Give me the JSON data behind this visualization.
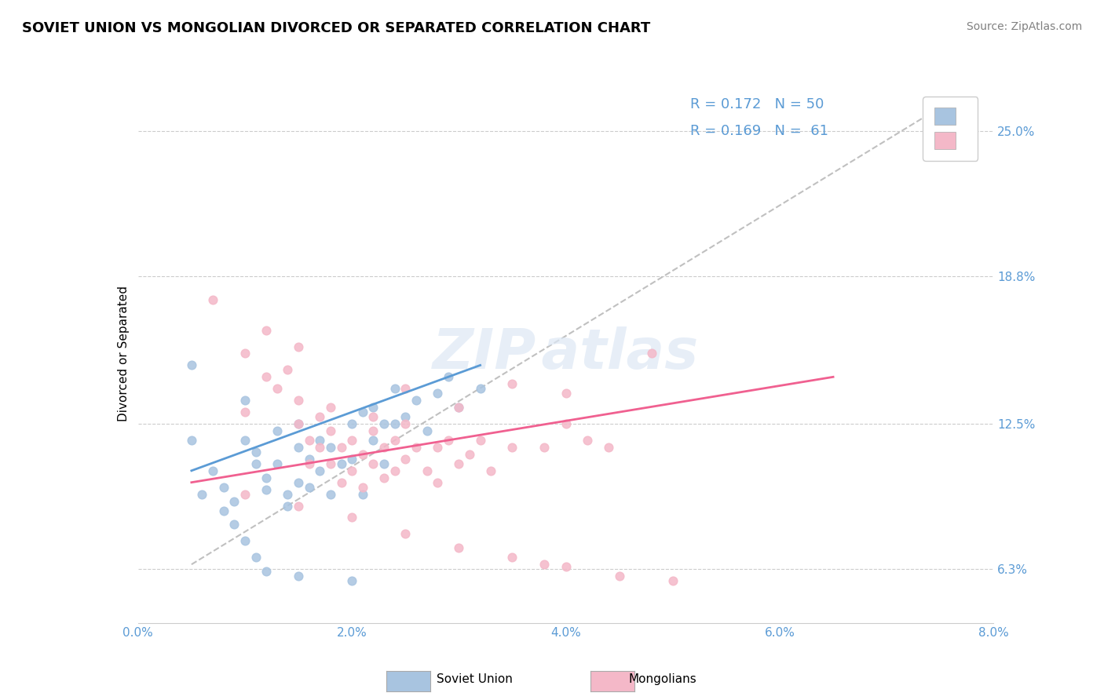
{
  "title": "SOVIET UNION VS MONGOLIAN DIVORCED OR SEPARATED CORRELATION CHART",
  "source_text": "Source: ZipAtlas.com",
  "ylabel": "Divorced or Separated",
  "xlabel_ticks": [
    "0.0%",
    "2.0%",
    "4.0%",
    "6.0%",
    "8.0%"
  ],
  "xlabel_vals": [
    0.0,
    0.02,
    0.04,
    0.06,
    0.08
  ],
  "ylabel_ticks": [
    "6.3%",
    "12.5%",
    "18.8%",
    "25.0%"
  ],
  "ylabel_vals": [
    0.063,
    0.125,
    0.188,
    0.25
  ],
  "xlim": [
    0.0,
    0.08
  ],
  "ylim": [
    0.04,
    0.27
  ],
  "legend_r1": "R = 0.172",
  "legend_n1": "N = 50",
  "legend_r2": "R = 0.169",
  "legend_n2": "N =  61",
  "watermark": "ZIPAtlas",
  "soviet_color": "#a8c4e0",
  "mongolian_color": "#f4b8c8",
  "soviet_line_color": "#5b9bd5",
  "mongolian_line_color": "#f06090",
  "diagonal_color": "#c0c0c0",
  "soviet_scatter": [
    [
      0.005,
      0.118
    ],
    [
      0.007,
      0.105
    ],
    [
      0.008,
      0.098
    ],
    [
      0.009,
      0.092
    ],
    [
      0.01,
      0.135
    ],
    [
      0.01,
      0.118
    ],
    [
      0.011,
      0.113
    ],
    [
      0.011,
      0.108
    ],
    [
      0.012,
      0.102
    ],
    [
      0.012,
      0.097
    ],
    [
      0.013,
      0.122
    ],
    [
      0.013,
      0.108
    ],
    [
      0.014,
      0.095
    ],
    [
      0.014,
      0.09
    ],
    [
      0.015,
      0.125
    ],
    [
      0.015,
      0.115
    ],
    [
      0.015,
      0.1
    ],
    [
      0.016,
      0.11
    ],
    [
      0.016,
      0.098
    ],
    [
      0.017,
      0.118
    ],
    [
      0.017,
      0.105
    ],
    [
      0.018,
      0.115
    ],
    [
      0.018,
      0.095
    ],
    [
      0.019,
      0.108
    ],
    [
      0.02,
      0.125
    ],
    [
      0.02,
      0.11
    ],
    [
      0.021,
      0.13
    ],
    [
      0.021,
      0.095
    ],
    [
      0.022,
      0.132
    ],
    [
      0.022,
      0.118
    ],
    [
      0.023,
      0.125
    ],
    [
      0.023,
      0.108
    ],
    [
      0.024,
      0.14
    ],
    [
      0.025,
      0.128
    ],
    [
      0.026,
      0.135
    ],
    [
      0.027,
      0.122
    ],
    [
      0.028,
      0.138
    ],
    [
      0.029,
      0.145
    ],
    [
      0.03,
      0.132
    ],
    [
      0.032,
      0.14
    ],
    [
      0.005,
      0.15
    ],
    [
      0.006,
      0.095
    ],
    [
      0.008,
      0.088
    ],
    [
      0.009,
      0.082
    ],
    [
      0.01,
      0.075
    ],
    [
      0.011,
      0.068
    ],
    [
      0.012,
      0.062
    ],
    [
      0.015,
      0.06
    ],
    [
      0.02,
      0.058
    ],
    [
      0.024,
      0.125
    ]
  ],
  "mongolian_scatter": [
    [
      0.007,
      0.178
    ],
    [
      0.01,
      0.155
    ],
    [
      0.012,
      0.165
    ],
    [
      0.013,
      0.14
    ],
    [
      0.014,
      0.148
    ],
    [
      0.015,
      0.135
    ],
    [
      0.015,
      0.125
    ],
    [
      0.016,
      0.118
    ],
    [
      0.016,
      0.108
    ],
    [
      0.017,
      0.128
    ],
    [
      0.017,
      0.115
    ],
    [
      0.018,
      0.122
    ],
    [
      0.018,
      0.108
    ],
    [
      0.019,
      0.115
    ],
    [
      0.019,
      0.1
    ],
    [
      0.02,
      0.118
    ],
    [
      0.02,
      0.105
    ],
    [
      0.021,
      0.112
    ],
    [
      0.021,
      0.098
    ],
    [
      0.022,
      0.122
    ],
    [
      0.022,
      0.108
    ],
    [
      0.023,
      0.115
    ],
    [
      0.023,
      0.102
    ],
    [
      0.024,
      0.118
    ],
    [
      0.024,
      0.105
    ],
    [
      0.025,
      0.125
    ],
    [
      0.025,
      0.11
    ],
    [
      0.026,
      0.115
    ],
    [
      0.027,
      0.105
    ],
    [
      0.028,
      0.115
    ],
    [
      0.028,
      0.1
    ],
    [
      0.029,
      0.118
    ],
    [
      0.03,
      0.108
    ],
    [
      0.031,
      0.112
    ],
    [
      0.032,
      0.118
    ],
    [
      0.033,
      0.105
    ],
    [
      0.035,
      0.115
    ],
    [
      0.038,
      0.115
    ],
    [
      0.04,
      0.125
    ],
    [
      0.042,
      0.118
    ],
    [
      0.044,
      0.115
    ],
    [
      0.048,
      0.155
    ],
    [
      0.01,
      0.13
    ],
    [
      0.012,
      0.145
    ],
    [
      0.015,
      0.158
    ],
    [
      0.018,
      0.132
    ],
    [
      0.022,
      0.128
    ],
    [
      0.025,
      0.14
    ],
    [
      0.03,
      0.132
    ],
    [
      0.035,
      0.142
    ],
    [
      0.04,
      0.138
    ],
    [
      0.01,
      0.095
    ],
    [
      0.015,
      0.09
    ],
    [
      0.02,
      0.085
    ],
    [
      0.025,
      0.078
    ],
    [
      0.03,
      0.072
    ],
    [
      0.035,
      0.068
    ],
    [
      0.04,
      0.064
    ],
    [
      0.045,
      0.06
    ],
    [
      0.038,
      0.065
    ],
    [
      0.05,
      0.058
    ]
  ],
  "soviet_trendline": [
    [
      0.005,
      0.105
    ],
    [
      0.032,
      0.15
    ]
  ],
  "mongolian_trendline": [
    [
      0.005,
      0.1
    ],
    [
      0.065,
      0.145
    ]
  ],
  "diagonal_line": [
    [
      0.005,
      0.065
    ],
    [
      0.075,
      0.26
    ]
  ],
  "title_fontsize": 13,
  "axis_label_fontsize": 11,
  "tick_fontsize": 11,
  "legend_fontsize": 13,
  "source_fontsize": 10
}
